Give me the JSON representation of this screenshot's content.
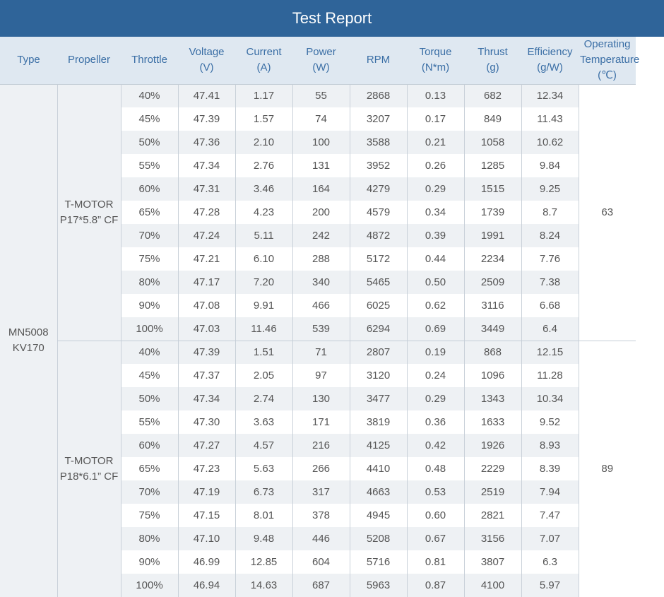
{
  "title": "Test Report",
  "headers": {
    "type": "Type",
    "propeller": "Propeller",
    "throttle": "Throttle",
    "voltage": [
      "Voltage",
      "(V)"
    ],
    "current": [
      "Current",
      "(A)"
    ],
    "power": [
      "Power",
      "(W)"
    ],
    "rpm": "RPM",
    "torque": [
      "Torque",
      "(N*m)"
    ],
    "thrust": [
      "Thrust",
      "(g)"
    ],
    "efficiency": [
      "Efficiency",
      "(g/W)"
    ],
    "temperature": [
      "Operating",
      "Temperature",
      "(℃)"
    ]
  },
  "type": [
    "MN5008",
    "KV170"
  ],
  "groups": [
    {
      "propeller": [
        "T-MOTOR",
        "P17*5.8” CF"
      ],
      "temperature": "63",
      "rows": [
        [
          "40%",
          "47.41",
          "1.17",
          "55",
          "2868",
          "0.13",
          "682",
          "12.34"
        ],
        [
          "45%",
          "47.39",
          "1.57",
          "74",
          "3207",
          "0.17",
          "849",
          "11.43"
        ],
        [
          "50%",
          "47.36",
          "2.10",
          "100",
          "3588",
          "0.21",
          "1058",
          "10.62"
        ],
        [
          "55%",
          "47.34",
          "2.76",
          "131",
          "3952",
          "0.26",
          "1285",
          "9.84"
        ],
        [
          "60%",
          "47.31",
          "3.46",
          "164",
          "4279",
          "0.29",
          "1515",
          "9.25"
        ],
        [
          "65%",
          "47.28",
          "4.23",
          "200",
          "4579",
          "0.34",
          "1739",
          "8.7"
        ],
        [
          "70%",
          "47.24",
          "5.11",
          "242",
          "4872",
          "0.39",
          "1991",
          "8.24"
        ],
        [
          "75%",
          "47.21",
          "6.10",
          "288",
          "5172",
          "0.44",
          "2234",
          "7.76"
        ],
        [
          "80%",
          "47.17",
          "7.20",
          "340",
          "5465",
          "0.50",
          "2509",
          "7.38"
        ],
        [
          "90%",
          "47.08",
          "9.91",
          "466",
          "6025",
          "0.62",
          "3116",
          "6.68"
        ],
        [
          "100%",
          "47.03",
          "11.46",
          "539",
          "6294",
          "0.69",
          "3449",
          "6.4"
        ]
      ]
    },
    {
      "propeller": [
        "T-MOTOR",
        "P18*6.1” CF"
      ],
      "temperature": "89",
      "rows": [
        [
          "40%",
          "47.39",
          "1.51",
          "71",
          "2807",
          "0.19",
          "868",
          "12.15"
        ],
        [
          "45%",
          "47.37",
          "2.05",
          "97",
          "3120",
          "0.24",
          "1096",
          "11.28"
        ],
        [
          "50%",
          "47.34",
          "2.74",
          "130",
          "3477",
          "0.29",
          "1343",
          "10.34"
        ],
        [
          "55%",
          "47.30",
          "3.63",
          "171",
          "3819",
          "0.36",
          "1633",
          "9.52"
        ],
        [
          "60%",
          "47.27",
          "4.57",
          "216",
          "4125",
          "0.42",
          "1926",
          "8.93"
        ],
        [
          "65%",
          "47.23",
          "5.63",
          "266",
          "4410",
          "0.48",
          "2229",
          "8.39"
        ],
        [
          "70%",
          "47.19",
          "6.73",
          "317",
          "4663",
          "0.53",
          "2519",
          "7.94"
        ],
        [
          "75%",
          "47.15",
          "8.01",
          "378",
          "4945",
          "0.60",
          "2821",
          "7.47"
        ],
        [
          "80%",
          "47.10",
          "9.48",
          "446",
          "5208",
          "0.67",
          "3156",
          "7.07"
        ],
        [
          "90%",
          "46.99",
          "12.85",
          "604",
          "5716",
          "0.81",
          "3807",
          "6.3"
        ],
        [
          "100%",
          "46.94",
          "14.63",
          "687",
          "5963",
          "0.87",
          "4100",
          "5.97"
        ]
      ]
    }
  ]
}
